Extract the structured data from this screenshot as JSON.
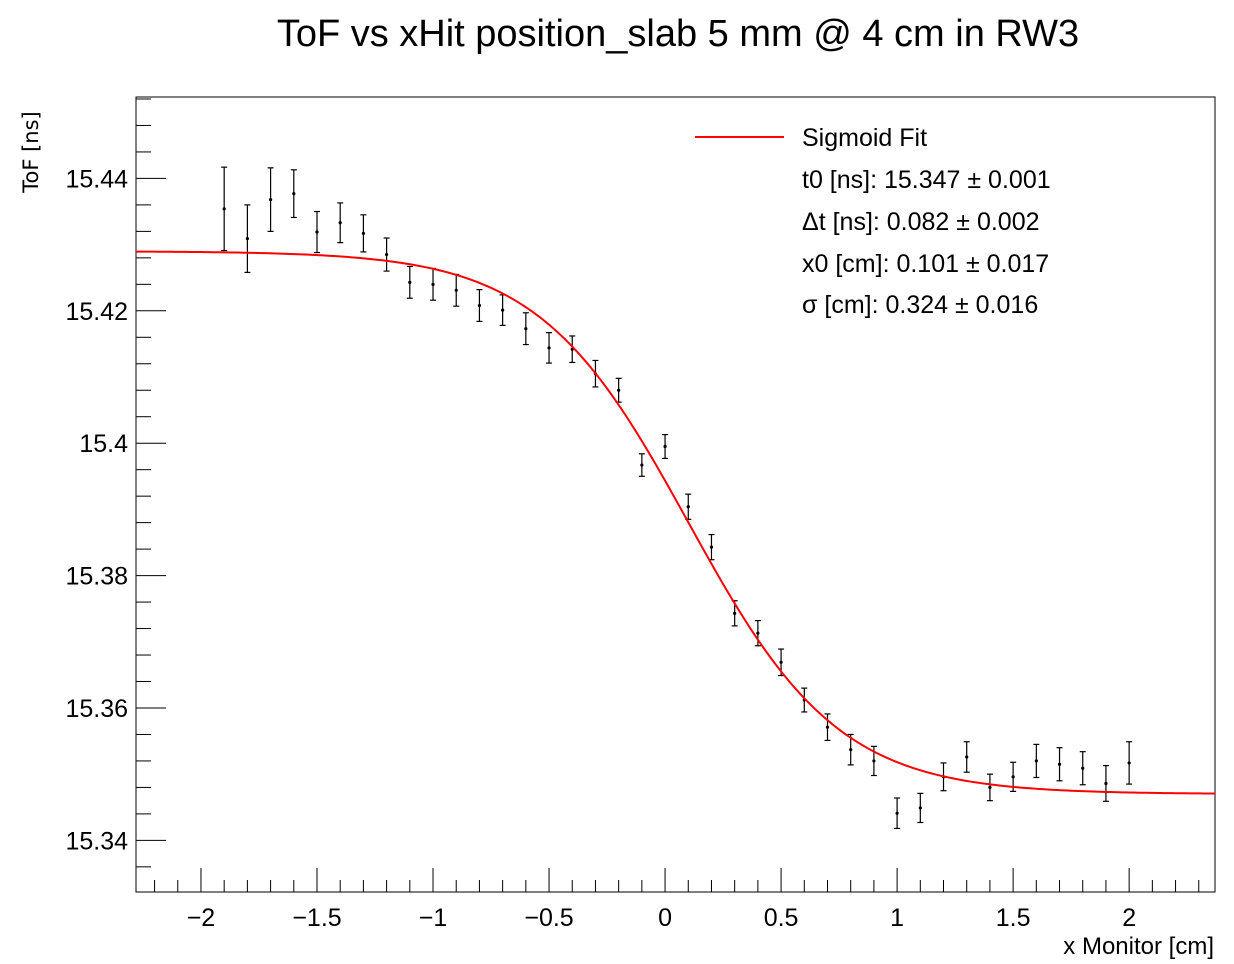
{
  "chart_data": {
    "type": "scatter",
    "title": "ToF vs xHit position_slab 5 mm @ 4 cm in RW3",
    "xlabel": "x Monitor [cm]",
    "ylabel": "ToF [ns]",
    "xlim": [
      -2.28,
      2.37
    ],
    "ylim": [
      15.3322,
      15.4523
    ],
    "x_ticks": [
      -2,
      -1.5,
      -1,
      -0.5,
      0,
      0.5,
      1,
      1.5,
      2
    ],
    "x_tick_labels": [
      "−2",
      "−1.5",
      "−1",
      "−0.5",
      "0",
      "0.5",
      "1",
      "1.5",
      "2"
    ],
    "y_ticks": [
      15.34,
      15.36,
      15.38,
      15.4,
      15.42,
      15.44
    ],
    "y_tick_labels": [
      "15.34",
      "15.36",
      "15.38",
      "15.4",
      "15.42",
      "15.44"
    ],
    "grid": false,
    "legend_position": "top-right",
    "series": [
      {
        "name": "data",
        "color": "#000000",
        "points": [
          {
            "x": -1.9,
            "y": 15.4354,
            "err": 0.0063
          },
          {
            "x": -1.8,
            "y": 15.4309,
            "err": 0.0051
          },
          {
            "x": -1.7,
            "y": 15.4368,
            "err": 0.0048
          },
          {
            "x": -1.6,
            "y": 15.4377,
            "err": 0.0036
          },
          {
            "x": -1.5,
            "y": 15.4319,
            "err": 0.0031
          },
          {
            "x": -1.4,
            "y": 15.4333,
            "err": 0.003
          },
          {
            "x": -1.3,
            "y": 15.4317,
            "err": 0.0028
          },
          {
            "x": -1.2,
            "y": 15.4285,
            "err": 0.0025
          },
          {
            "x": -1.1,
            "y": 15.4243,
            "err": 0.0024
          },
          {
            "x": -1.0,
            "y": 15.424,
            "err": 0.0024
          },
          {
            "x": -0.9,
            "y": 15.4231,
            "err": 0.0024
          },
          {
            "x": -0.8,
            "y": 15.4208,
            "err": 0.0024
          },
          {
            "x": -0.7,
            "y": 15.4201,
            "err": 0.0023
          },
          {
            "x": -0.6,
            "y": 15.4173,
            "err": 0.0024
          },
          {
            "x": -0.5,
            "y": 15.4144,
            "err": 0.0023
          },
          {
            "x": -0.4,
            "y": 15.4142,
            "err": 0.002
          },
          {
            "x": -0.3,
            "y": 15.4105,
            "err": 0.002
          },
          {
            "x": -0.2,
            "y": 15.408,
            "err": 0.0018
          },
          {
            "x": -0.1,
            "y": 15.3967,
            "err": 0.0017
          },
          {
            "x": 0.0,
            "y": 15.3995,
            "err": 0.0018
          },
          {
            "x": 0.1,
            "y": 15.3904,
            "err": 0.0019
          },
          {
            "x": 0.2,
            "y": 15.3843,
            "err": 0.0019
          },
          {
            "x": 0.3,
            "y": 15.3743,
            "err": 0.0019
          },
          {
            "x": 0.4,
            "y": 15.3713,
            "err": 0.0019
          },
          {
            "x": 0.5,
            "y": 15.3669,
            "err": 0.002
          },
          {
            "x": 0.6,
            "y": 15.3612,
            "err": 0.0018
          },
          {
            "x": 0.7,
            "y": 15.3571,
            "err": 0.002
          },
          {
            "x": 0.8,
            "y": 15.3537,
            "err": 0.0023
          },
          {
            "x": 0.9,
            "y": 15.352,
            "err": 0.0022
          },
          {
            "x": 1.0,
            "y": 15.3441,
            "err": 0.0023
          },
          {
            "x": 1.1,
            "y": 15.3449,
            "err": 0.0022
          },
          {
            "x": 1.2,
            "y": 15.3496,
            "err": 0.0021
          },
          {
            "x": 1.3,
            "y": 15.3526,
            "err": 0.0023
          },
          {
            "x": 1.4,
            "y": 15.348,
            "err": 0.002
          },
          {
            "x": 1.5,
            "y": 15.3496,
            "err": 0.0022
          },
          {
            "x": 1.6,
            "y": 15.352,
            "err": 0.0025
          },
          {
            "x": 1.7,
            "y": 15.3515,
            "err": 0.0025
          },
          {
            "x": 1.8,
            "y": 15.3509,
            "err": 0.0025
          },
          {
            "x": 1.9,
            "y": 15.3486,
            "err": 0.0027
          },
          {
            "x": 2.0,
            "y": 15.3517,
            "err": 0.0032
          }
        ]
      },
      {
        "name": "Sigmoid Fit",
        "kind": "fit-curve",
        "color": "#ff0000",
        "function": "t0 + dt / (1 + exp((x - x0) / sigma))",
        "params": {
          "t0": 15.347,
          "dt": 0.082,
          "x0": 0.101,
          "sigma": 0.324
        },
        "x_range": [
          -2.28,
          2.37
        ]
      }
    ],
    "legend": {
      "entries": [
        {
          "label": "Sigmoid Fit",
          "color": "#ff0000"
        },
        {
          "label": "t0 [ns]: 15.347 ± 0.001"
        },
        {
          "label": "Δt [ns]: 0.082 ± 0.002"
        },
        {
          "label": "x0 [cm]: 0.101 ± 0.017"
        },
        {
          "label": "σ [cm]: 0.324 ± 0.016"
        }
      ]
    }
  }
}
